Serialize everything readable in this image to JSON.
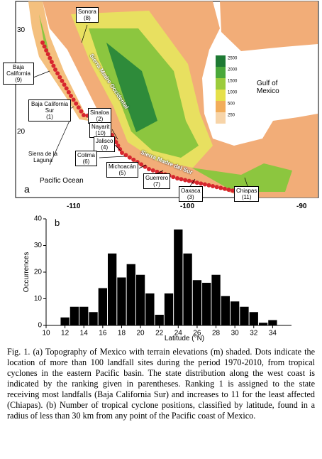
{
  "map": {
    "panel_label": "a",
    "lat_ticks": [
      "30",
      "20"
    ],
    "lon_ticks": [
      "-110",
      "-100",
      "-90"
    ],
    "gulf": "Gulf of\nMexico",
    "ocean": "Pacific Ocean",
    "laguna": "Sierra de la\nLaguna",
    "occidental": "Sierra Madre Occidental",
    "del_sur": "Sierra Madre del Sur",
    "colorbar": [
      2500,
      2000,
      1500,
      1000,
      500,
      250
    ],
    "states": [
      {
        "name": "Sonora",
        "rank": "(8)"
      },
      {
        "name": "Baja California",
        "rank": "(9)"
      },
      {
        "name": "Baja California Sur",
        "rank": "(1)"
      },
      {
        "name": "Sinaloa",
        "rank": "(2)"
      },
      {
        "name": "Nayarit",
        "rank": "(10)"
      },
      {
        "name": "Jalisco",
        "rank": "(4)"
      },
      {
        "name": "Colima",
        "rank": "(6)"
      },
      {
        "name": "Michoacán",
        "rank": "(5)"
      },
      {
        "name": "Guerrero",
        "rank": "(7)"
      },
      {
        "name": "Oaxaca",
        "rank": "(3)"
      },
      {
        "name": "Chiapas",
        "rank": "(11)"
      }
    ]
  },
  "chart_data": {
    "type": "histogram",
    "panel_label": "b",
    "xlabel": "Latitude (°N)",
    "ylabel": "Occurrences",
    "bins": [
      11.5,
      12.5,
      13.5,
      14.5,
      15.5,
      16.5,
      17.5,
      18.5,
      19.5,
      20.5,
      21.5,
      22.5,
      23.5,
      24.5,
      25.5,
      26.5,
      27.5,
      28.5,
      29.5,
      30.5,
      31.5,
      32.5,
      33.5,
      34.5
    ],
    "values": [
      3,
      7,
      7,
      5,
      14,
      27,
      18,
      23,
      19,
      12,
      4,
      12,
      36,
      27,
      17,
      16,
      19,
      11,
      9,
      7,
      5,
      1,
      2
    ],
    "color": "#000000",
    "xlim": [
      10,
      36
    ],
    "ylim": [
      0,
      40
    ],
    "xticks": [
      10,
      12,
      14,
      16,
      18,
      20,
      22,
      24,
      26,
      28,
      30,
      32,
      34
    ],
    "yticks": [
      0,
      10,
      20,
      30,
      40
    ]
  },
  "caption": "Fig. 1. (a) Topography of Mexico with terrain elevations (m) shaded. Dots indicate the location of more than 100 landfall sites during the period 1970-2010, from tropical cyclones in the eastern Pacific basin. The state distribution along the west coast is indicated by the ranking given in parentheses. Ranking 1 is assigned to the state receiving most landfalls (Baja California Sur) and increases to 11 for the least affected (Chiapas). (b) Number of tropical cyclone positions, classified by latitude, found in a radius of less than 30 km from any point of the Pacific coast of Mexico."
}
